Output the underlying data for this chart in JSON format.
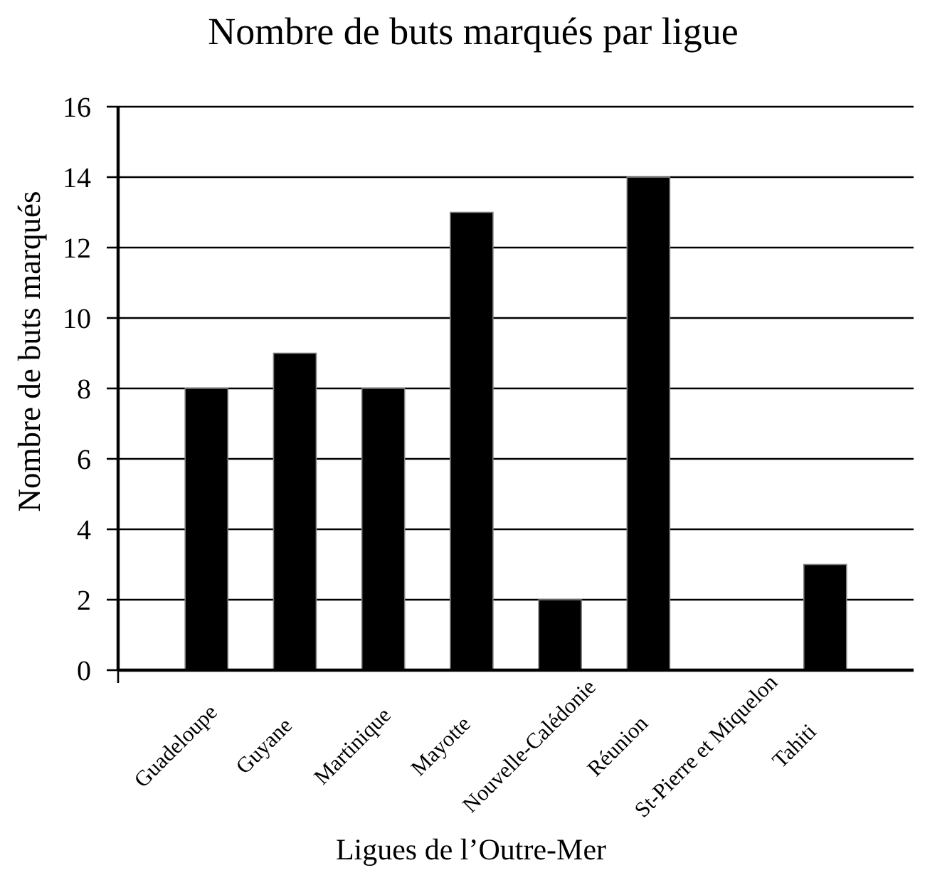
{
  "chart_data": {
    "type": "bar",
    "title": "Nombre de buts marqués par ligue",
    "xlabel": "Ligues de l’Outre-Mer",
    "ylabel": "Nombre de buts marqués",
    "categories": [
      "Guadeloupe",
      "Guyane",
      "Martinique",
      "Mayotte",
      "Nouvelle-Calédonie",
      "Réunion",
      "St-Pierre et Miquelon",
      "Tahiti"
    ],
    "values": [
      8,
      9,
      8,
      13,
      2,
      14,
      0,
      3
    ],
    "color": "#000000",
    "ylim": [
      0,
      16
    ],
    "yticks": [
      0,
      2,
      4,
      6,
      8,
      10,
      12,
      14,
      16
    ],
    "grid": "y"
  }
}
